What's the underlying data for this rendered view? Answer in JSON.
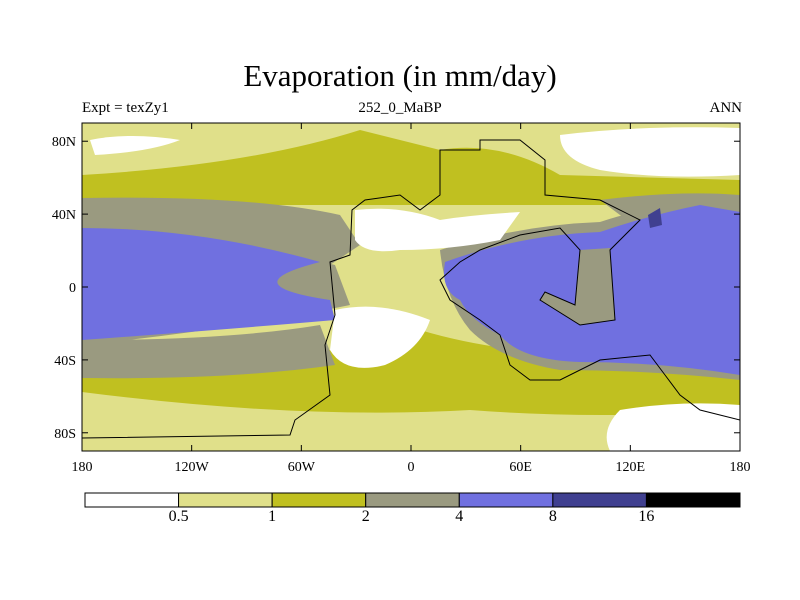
{
  "title": "Evaporation (in mm/day)",
  "subtitle_left": "Expt = texZy1",
  "subtitle_center": "252_0_MaBP",
  "subtitle_right": "ANN",
  "axes": {
    "x_ticks": [
      "180",
      "120W",
      "60W",
      "0",
      "60E",
      "120E",
      "180"
    ],
    "y_ticks": [
      "80N",
      "40N",
      "0",
      "40S",
      "80S"
    ],
    "lon_range": [
      -180,
      180
    ],
    "lat_range": [
      -90,
      90
    ]
  },
  "colorbar": {
    "labels": [
      "0.5",
      "1",
      "2",
      "4",
      "8",
      "16"
    ],
    "colors": [
      "#ffffff",
      "#e0e08a",
      "#c0c020",
      "#9a9a80",
      "#7070e0",
      "#404090",
      "#000000"
    ]
  }
}
